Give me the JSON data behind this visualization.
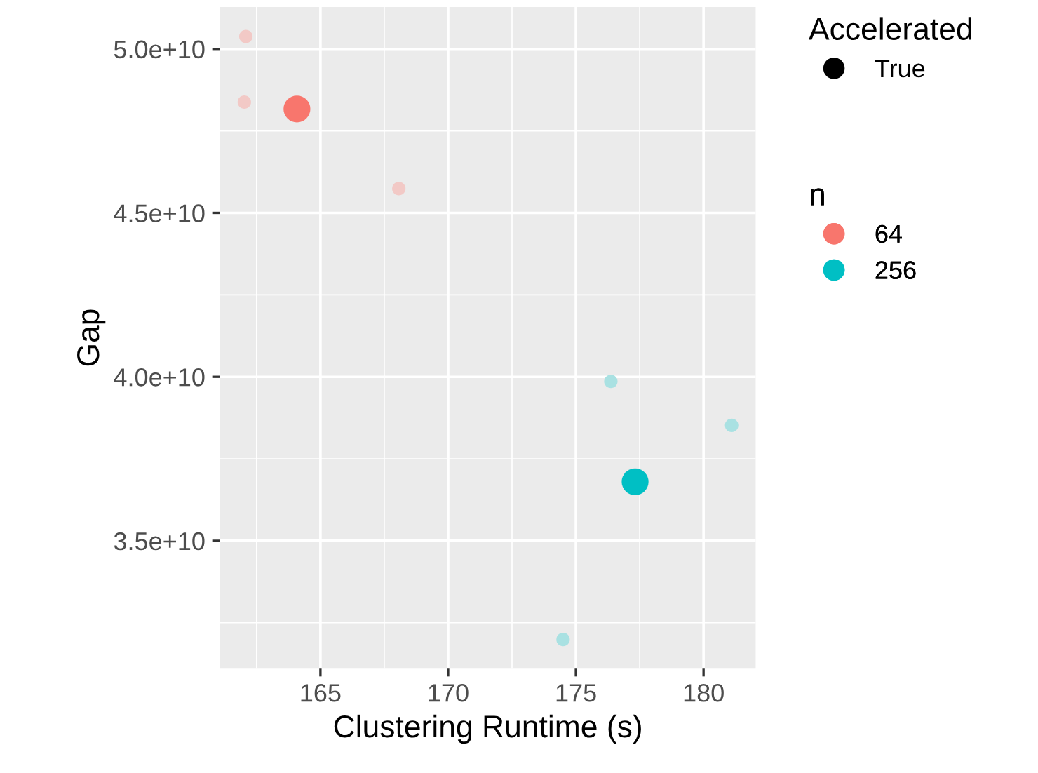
{
  "chart_data": {
    "type": "bubble",
    "xlabel": "Clustering Runtime (s)",
    "ylabel": "Gap",
    "xlim": [
      161.07,
      182.04
    ],
    "xticks": [
      165,
      170,
      175,
      180
    ],
    "ylim": [
      31100000000,
      51280000000
    ],
    "yticks": [
      {
        "value": 35000000000,
        "label": "3.5e+10"
      },
      {
        "value": 40000000000,
        "label": "4.0e+10"
      },
      {
        "value": 45000000000,
        "label": "4.5e+10"
      },
      {
        "value": 50000000000,
        "label": "5.0e+10"
      }
    ],
    "grid": true,
    "legend": "right",
    "legend_title": [
      "Accelerated",
      "n"
    ],
    "marker": "circle",
    "series": [
      {
        "name": "True",
        "color": "#000000"
      },
      {
        "name": "64",
        "color": "#f8766d",
        "x": [
          164.08
        ],
        "values": [
          48170000000
        ],
        "sizes": [
          1
        ]
      },
      {
        "name": "256",
        "color": "#00bfc4",
        "x": [
          177.32
        ],
        "values": [
          36800000000
        ],
        "sizes": [
          1
        ]
      },
      {
        "color": "#f2c9c6",
        "x": [
          162.08,
          162.02,
          168.07
        ],
        "values": [
          50380000000,
          48380000000,
          45740000000
        ],
        "sizes": [
          0.25,
          0.25,
          0.25
        ]
      },
      {
        "color": "#a9e1e2",
        "x": [
          176.37,
          181.1,
          174.5
        ],
        "values": [
          39860000000,
          38520000000,
          31990000000
        ],
        "sizes": [
          0.25,
          0.25,
          0.25
        ]
      }
    ]
  }
}
